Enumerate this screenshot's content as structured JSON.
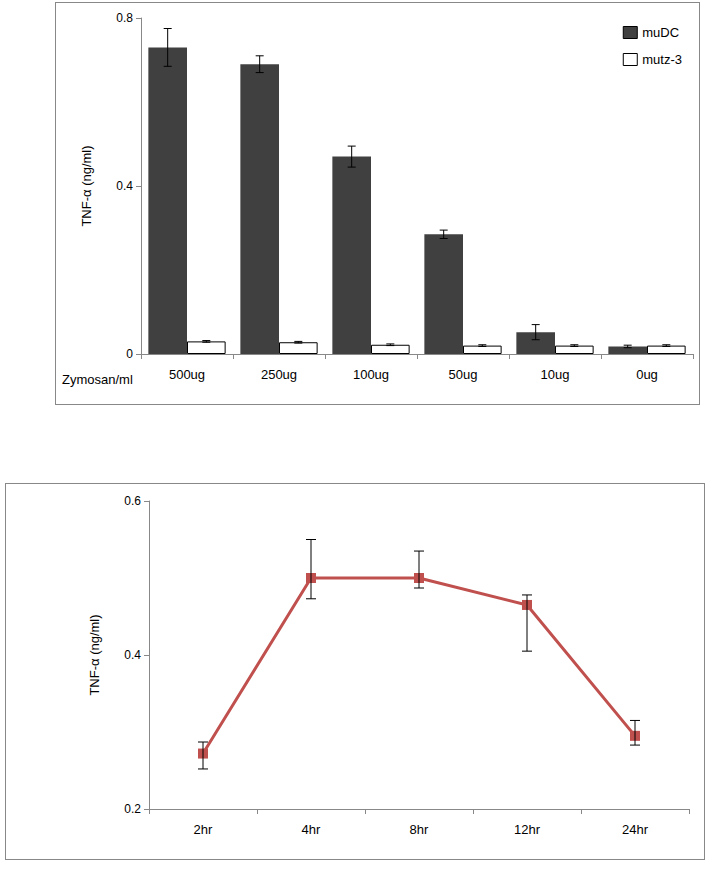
{
  "chart_data": [
    {
      "type": "bar",
      "y_label": "TNF-α (ng/ml)",
      "x_label": "Zymosan/ml",
      "categories": [
        "500ug",
        "250ug",
        "100ug",
        "50ug",
        "10ug",
        "0ug"
      ],
      "series": [
        {
          "name": "muDC",
          "color": "#404040",
          "values": [
            0.73,
            0.69,
            0.47,
            0.285,
            0.052,
            0.018
          ],
          "errors": [
            0.045,
            0.02,
            0.025,
            0.01,
            0.018,
            0.003
          ]
        },
        {
          "name": "mutz-3",
          "color": "#ffffff",
          "values": [
            0.03,
            0.028,
            0.022,
            0.02,
            0.02,
            0.02
          ],
          "errors": [
            0.002,
            0.002,
            0.002,
            0.002,
            0.002,
            0.002
          ]
        }
      ],
      "ylim": [
        0,
        0.8
      ],
      "yticks": [
        0,
        0.4,
        0.8
      ],
      "grid": false,
      "legend": "upper right"
    },
    {
      "type": "line",
      "y_label": "TNF-α (ng/ml)",
      "categories": [
        "2hr",
        "4hr",
        "8hr",
        "12hr",
        "24hr"
      ],
      "series": [
        {
          "color": "#c0504d",
          "marker": "square",
          "line_style": "solid",
          "values": [
            0.272,
            0.5,
            0.5,
            0.465,
            0.295
          ],
          "error_plus": [
            0.015,
            0.05,
            0.035,
            0.013,
            0.02
          ],
          "error_minus": [
            0.02,
            0.027,
            0.013,
            0.06,
            0.012
          ]
        }
      ],
      "ylim": [
        0.2,
        0.6
      ],
      "yticks": [
        0.2,
        0.4,
        0.6
      ],
      "grid": false
    }
  ]
}
